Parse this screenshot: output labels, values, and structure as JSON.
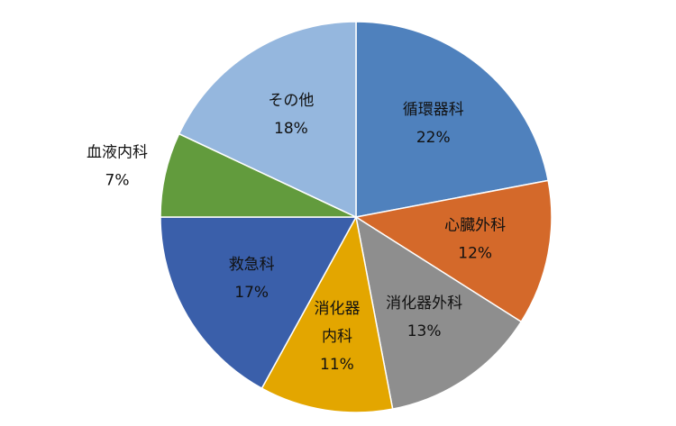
{
  "chart_data": {
    "type": "pie",
    "title": "",
    "start_angle_deg": 0,
    "direction": "clockwise",
    "slices": [
      {
        "name": "循環器科",
        "label_lines": [
          "循環器科"
        ],
        "value": 22,
        "value_label": "22%",
        "color": "#4F81BD"
      },
      {
        "name": "心臓外科",
        "label_lines": [
          "心臓外科"
        ],
        "value": 12,
        "value_label": "12%",
        "color": "#D4692A"
      },
      {
        "name": "消化器外科",
        "label_lines": [
          "消化器外科"
        ],
        "value": 13,
        "value_label": "13%",
        "color": "#8E8E8E"
      },
      {
        "name": "消化器内科",
        "label_lines": [
          "消化器",
          "内科"
        ],
        "value": 11,
        "value_label": "11%",
        "color": "#E3A600"
      },
      {
        "name": "救急科",
        "label_lines": [
          "救急科"
        ],
        "value": 17,
        "value_label": "17%",
        "color": "#3A5FAA"
      },
      {
        "name": "血液内科",
        "label_lines": [
          "血液内科"
        ],
        "value": 7,
        "value_label": "7%",
        "color": "#629B3D",
        "label_outside": true
      },
      {
        "name": "その他",
        "label_lines": [
          "その他"
        ],
        "value": 18,
        "value_label": "18%",
        "color": "#95B7DE"
      }
    ]
  }
}
